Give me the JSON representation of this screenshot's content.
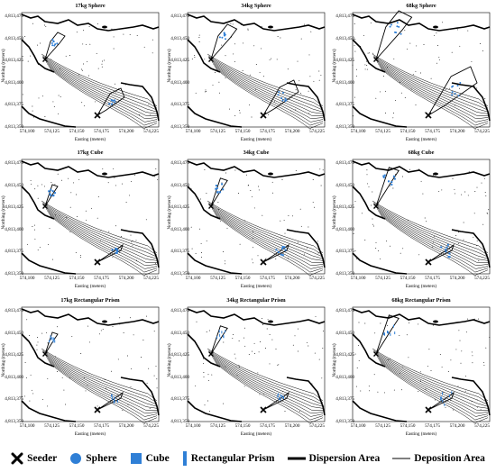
{
  "panels": [
    {
      "title": "17kg Sphere",
      "shape": "sphere",
      "mass": 17
    },
    {
      "title": "34kg Sphere",
      "shape": "sphere",
      "mass": 34
    },
    {
      "title": "68kg Sphere",
      "shape": "sphere",
      "mass": 68
    },
    {
      "title": "17kg Cube",
      "shape": "cube",
      "mass": 17
    },
    {
      "title": "34kg Cube",
      "shape": "cube",
      "mass": 34
    },
    {
      "title": "68kg Cube",
      "shape": "cube",
      "mass": 68
    },
    {
      "title": "17kg Rectangular Prism",
      "shape": "prism",
      "mass": 17
    },
    {
      "title": "34kg Rectangular Prism",
      "shape": "prism",
      "mass": 34
    },
    {
      "title": "68kg Rectangular Prism",
      "shape": "prism",
      "mass": 68
    }
  ],
  "axes": {
    "xlabel": "Easting (meters)",
    "ylabel": "Northing (meters)",
    "xticks": [
      "574,100",
      "574,125",
      "574,150",
      "574,175",
      "574,200",
      "574,225"
    ],
    "yticks": [
      "4,813,475",
      "4,813,450",
      "4,813,425",
      "4,813,400",
      "4,813,375",
      "4,813,350"
    ]
  },
  "legend": [
    {
      "label": "Seeder",
      "icon": "x-cross-icon"
    },
    {
      "label": "Sphere",
      "icon": "circle-icon"
    },
    {
      "label": "Cube",
      "icon": "square-icon"
    },
    {
      "label": "Rectangular Prism",
      "icon": "bar-icon"
    },
    {
      "label": "Dispersion Area",
      "icon": "thick-line-icon"
    },
    {
      "label": "Deposition Area",
      "icon": "thin-line-icon"
    }
  ],
  "colors": {
    "marker": "#2f7fd6",
    "line": "#000000"
  }
}
